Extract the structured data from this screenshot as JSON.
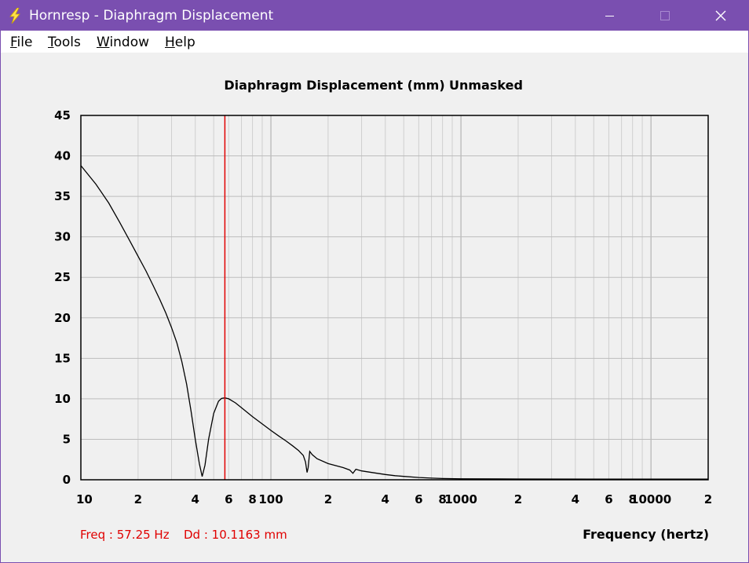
{
  "window": {
    "title": "Hornresp - Diaphragm Displacement",
    "accent_color": "#7a4fb0",
    "icon": "lightning-bolt-icon"
  },
  "menu": [
    {
      "key": "F",
      "rest": "ile"
    },
    {
      "key": "T",
      "rest": "ools"
    },
    {
      "key": "W",
      "rest": "indow"
    },
    {
      "key": "H",
      "rest": "elp"
    }
  ],
  "chart_data": {
    "type": "line",
    "title": "Diaphragm Displacement (mm)",
    "subtitle": "Unmasked",
    "xlabel": "Frequency (hertz)",
    "ylabel": "",
    "x_scale": "log",
    "xlim": [
      10,
      20000
    ],
    "ylim": [
      0,
      45
    ],
    "grid": true,
    "y_ticks": [
      "45",
      "40",
      "35",
      "30",
      "25",
      "20",
      "15",
      "10",
      "5",
      "0"
    ],
    "x_ticks": [
      {
        "value": 10,
        "label": "10"
      },
      {
        "value": 20,
        "label": "2"
      },
      {
        "value": 40,
        "label": "4"
      },
      {
        "value": 60,
        "label": "6"
      },
      {
        "value": 80,
        "label": "8"
      },
      {
        "value": 100,
        "label": "100"
      },
      {
        "value": 200,
        "label": "2"
      },
      {
        "value": 400,
        "label": "4"
      },
      {
        "value": 600,
        "label": "6"
      },
      {
        "value": 800,
        "label": "8"
      },
      {
        "value": 1000,
        "label": "1000"
      },
      {
        "value": 2000,
        "label": "2"
      },
      {
        "value": 4000,
        "label": "4"
      },
      {
        "value": 6000,
        "label": "6"
      },
      {
        "value": 8000,
        "label": "8"
      },
      {
        "value": 10000,
        "label": "10000"
      },
      {
        "value": 20000,
        "label": "2"
      }
    ],
    "series": [
      {
        "line_color": "#000000",
        "points": [
          [
            10,
            38.8
          ],
          [
            12,
            36.5
          ],
          [
            14,
            34.2
          ],
          [
            16,
            31.8
          ],
          [
            18,
            29.6
          ],
          [
            20,
            27.6
          ],
          [
            22,
            25.8
          ],
          [
            24,
            24.0
          ],
          [
            26,
            22.3
          ],
          [
            28,
            20.6
          ],
          [
            30,
            18.8
          ],
          [
            32,
            16.9
          ],
          [
            34,
            14.6
          ],
          [
            36,
            11.8
          ],
          [
            38,
            8.5
          ],
          [
            40,
            5.0
          ],
          [
            42,
            2.0
          ],
          [
            43.5,
            0.4
          ],
          [
            45,
            1.8
          ],
          [
            47,
            5.0
          ],
          [
            50,
            8.2
          ],
          [
            53,
            9.7
          ],
          [
            55,
            10.05
          ],
          [
            57.25,
            10.12
          ],
          [
            60,
            10.0
          ],
          [
            65,
            9.5
          ],
          [
            70,
            8.9
          ],
          [
            80,
            7.8
          ],
          [
            90,
            6.9
          ],
          [
            100,
            6.1
          ],
          [
            110,
            5.4
          ],
          [
            120,
            4.8
          ],
          [
            130,
            4.2
          ],
          [
            140,
            3.6
          ],
          [
            148,
            3.0
          ],
          [
            152,
            2.2
          ],
          [
            155,
            0.9
          ],
          [
            157,
            1.5
          ],
          [
            160,
            3.5
          ],
          [
            165,
            3.1
          ],
          [
            175,
            2.6
          ],
          [
            200,
            2.0
          ],
          [
            240,
            1.5
          ],
          [
            260,
            1.2
          ],
          [
            270,
            0.8
          ],
          [
            280,
            1.3
          ],
          [
            300,
            1.1
          ],
          [
            350,
            0.85
          ],
          [
            400,
            0.65
          ],
          [
            450,
            0.5
          ],
          [
            500,
            0.42
          ],
          [
            600,
            0.28
          ],
          [
            700,
            0.2
          ],
          [
            800,
            0.16
          ],
          [
            1000,
            0.12
          ],
          [
            2000,
            0.1
          ],
          [
            5000,
            0.08
          ],
          [
            20000,
            0.08
          ]
        ]
      }
    ],
    "cursor": {
      "x": 57.25,
      "color": "#e00000"
    }
  },
  "readout": {
    "freq": "Freq : 57.25 Hz",
    "dd": "Dd : 10.1163 mm",
    "color": "#e00000"
  }
}
